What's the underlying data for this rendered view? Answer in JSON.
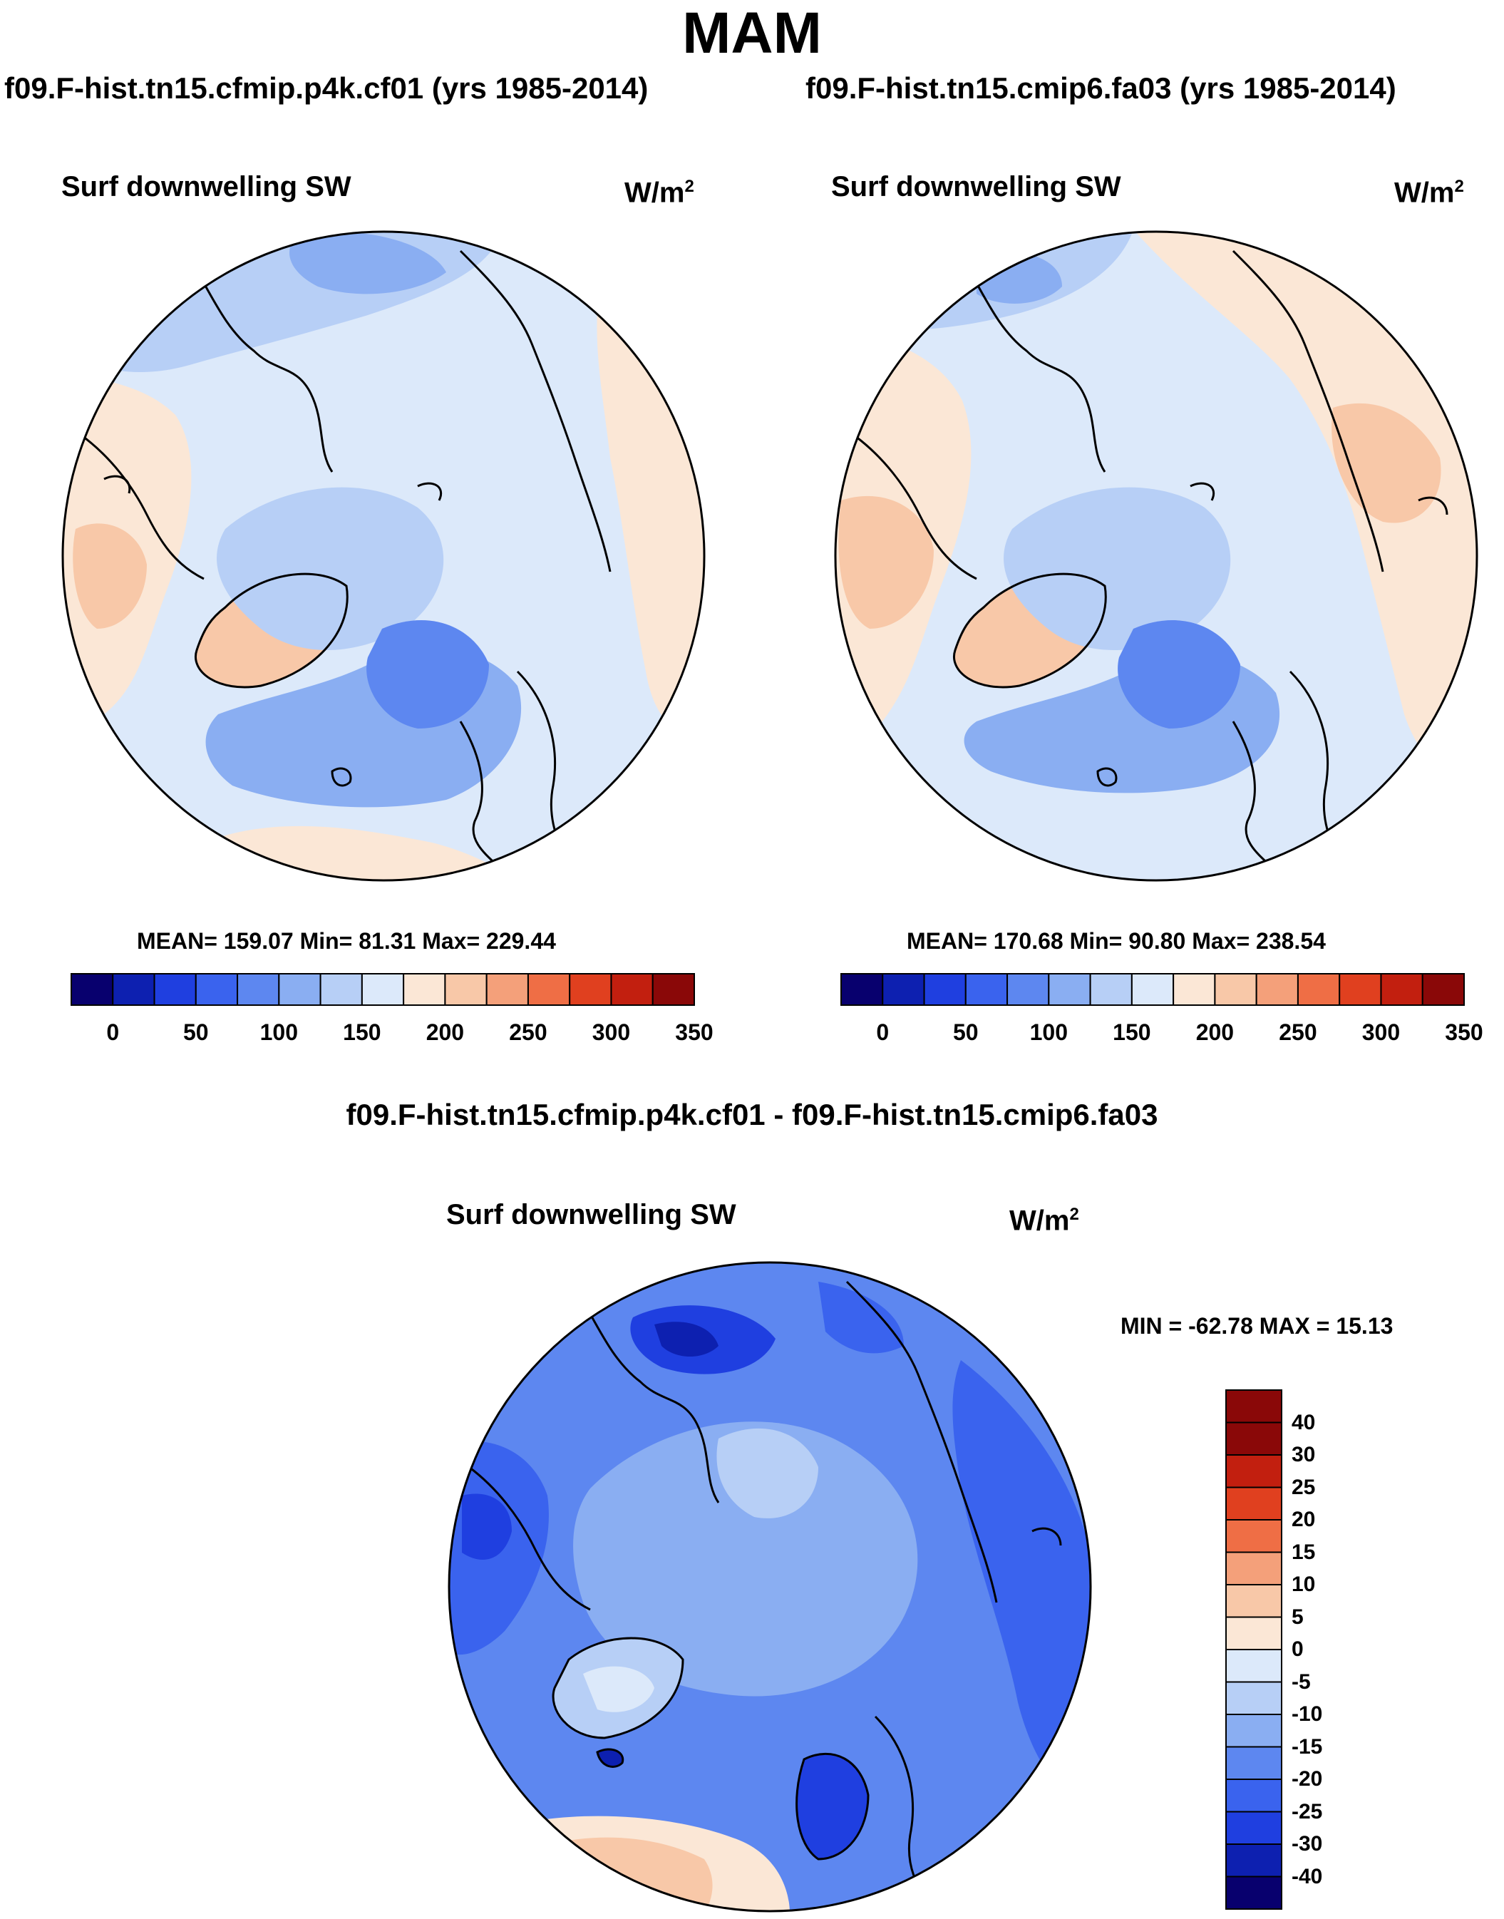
{
  "season_title": "MAM",
  "panels": {
    "top_left": {
      "case_title": "f09.F-hist.tn15.cfmip.p4k.cf01 (yrs 1985-2014)",
      "variable_label": "Surf downwelling SW",
      "units_base": "W/m",
      "units_exp": "2",
      "stats": "MEAN= 159.07  Min=  81.31  Max= 229.44"
    },
    "top_right": {
      "case_title": "f09.F-hist.tn15.cmip6.fa03 (yrs 1985-2014)",
      "variable_label": "Surf downwelling SW",
      "units_base": "W/m",
      "units_exp": "2",
      "stats": "MEAN= 170.68  Min=  90.80  Max= 238.54"
    },
    "difference": {
      "case_title": "f09.F-hist.tn15.cfmip.p4k.cf01 - f09.F-hist.tn15.cmip6.fa03",
      "variable_label": "Surf downwelling SW",
      "units_base": "W/m",
      "units_exp": "2",
      "stats": "MIN = -62.78 MAX =  15.13"
    }
  },
  "colorbar_abs": {
    "colors": [
      "#08006e",
      "#0d20b0",
      "#1f3fe0",
      "#3a63ee",
      "#5d87f0",
      "#8aaef2",
      "#b7cff6",
      "#dce9fa",
      "#fbe7d6",
      "#f8c8a8",
      "#f4a07a",
      "#ef6e45",
      "#e0401f",
      "#c21f0f",
      "#8a0808"
    ],
    "tick_labels": [
      "0",
      "50",
      "100",
      "150",
      "200",
      "250",
      "300",
      "350"
    ]
  },
  "colorbar_diff": {
    "colors": [
      "#8a0808",
      "#c21f0f",
      "#e0401f",
      "#ef6e45",
      "#f4a07a",
      "#f8c8a8",
      "#fbe7d6",
      "#dce9fa",
      "#b7cff6",
      "#8aaef2",
      "#5d87f0",
      "#3a63ee",
      "#1f3fe0",
      "#0d20b0",
      "#08006e"
    ],
    "tick_labels": [
      "40",
      "30",
      "25",
      "20",
      "15",
      "10",
      "5",
      "0",
      "-5",
      "-10",
      "-15",
      "-20",
      "-25",
      "-30",
      "-40"
    ]
  }
}
